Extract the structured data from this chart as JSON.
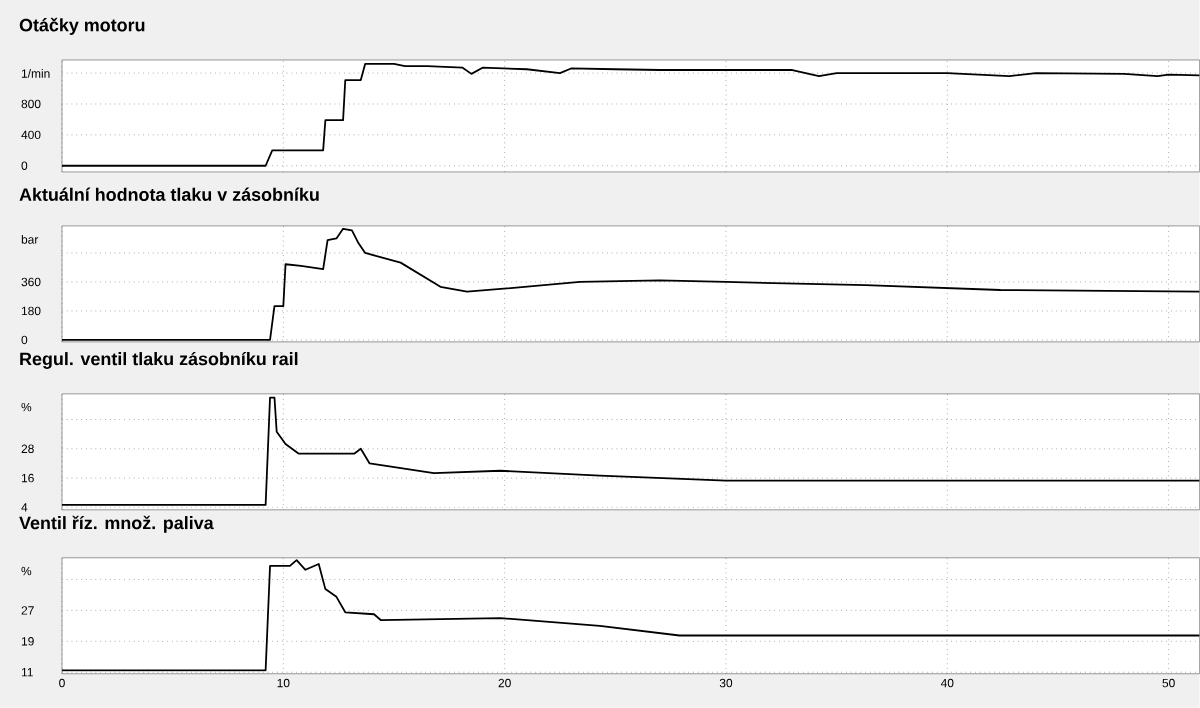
{
  "chart_data": [
    {
      "type": "line",
      "title": "Otáčky motoru",
      "ylabel": "1/min",
      "color": "#000000",
      "grid": true,
      "tick_labels": "y",
      "xlim": [
        0,
        51.4
      ],
      "ylim": [
        -80,
        1370
      ],
      "xticks": [
        0,
        10,
        20,
        30,
        40,
        50
      ],
      "yticks": [
        0,
        400,
        800,
        {
          "value": 1200,
          "label": null
        }
      ],
      "x": [
        0,
        9.2,
        9.5,
        11.8,
        11.9,
        12.7,
        12.8,
        13.5,
        13.7,
        15,
        15.5,
        16.5,
        18.1,
        18.5,
        19,
        21,
        22.5,
        23,
        25,
        27,
        30,
        33,
        34.2,
        35,
        40,
        42.8,
        44,
        48,
        49.5,
        50,
        51.4
      ],
      "values": [
        0,
        0,
        200,
        200,
        590,
        590,
        1110,
        1110,
        1320,
        1320,
        1290,
        1290,
        1270,
        1190,
        1270,
        1250,
        1200,
        1260,
        1250,
        1240,
        1240,
        1240,
        1160,
        1200,
        1200,
        1160,
        1200,
        1190,
        1160,
        1180,
        1170
      ]
    },
    {
      "type": "line",
      "title": "Aktuální hodnota tlaku v zásobníku",
      "ylabel": "bar",
      "color": "#000000",
      "grid": true,
      "tick_labels": "y",
      "xlim": [
        0,
        51.4
      ],
      "ylim": [
        -12,
        708
      ],
      "xticks": [
        0,
        10,
        20,
        30,
        40,
        50
      ],
      "yticks": [
        0,
        180,
        360,
        {
          "value": 540,
          "label": null
        }
      ],
      "x": [
        0,
        9.4,
        9.6,
        10,
        10.1,
        10.8,
        11.8,
        12.0,
        12.4,
        12.7,
        13.1,
        13.4,
        13.7,
        15.3,
        17.1,
        18.3,
        20.1,
        23.4,
        27,
        30,
        36.3,
        42.4,
        51.4
      ],
      "values": [
        0,
        0,
        210,
        210,
        470,
        460,
        440,
        620,
        630,
        690,
        680,
        600,
        540,
        480,
        330,
        300,
        320,
        360,
        370,
        360,
        340,
        310,
        300
      ]
    },
    {
      "type": "line",
      "title": "Regul. ventil tlaku zásobníku rail",
      "ylabel": "%",
      "color": "#000000",
      "grid": true,
      "tick_labels": "y",
      "xlim": [
        0,
        51.4
      ],
      "ylim": [
        3,
        50.5
      ],
      "xticks": [
        0,
        10,
        20,
        30,
        40,
        50
      ],
      "yticks": [
        4,
        16,
        28,
        {
          "value": 40,
          "label": null
        }
      ],
      "x": [
        0,
        9.2,
        9.4,
        9.6,
        9.7,
        10.1,
        10.7,
        13.2,
        13.5,
        13.9,
        16.8,
        19.8,
        24.3,
        30,
        51.4
      ],
      "values": [
        5,
        5,
        49,
        49,
        35,
        30,
        26,
        26,
        28,
        22,
        18,
        19,
        17,
        15,
        15
      ]
    },
    {
      "type": "line",
      "title": "Ventil říz. množ. paliva",
      "ylabel": "%",
      "color": "#000000",
      "grid": true,
      "xlim": [
        0,
        51.4
      ],
      "ylim": [
        10.6,
        40.6
      ],
      "xticks": [
        0,
        10,
        20,
        30,
        40,
        50
      ],
      "yticks": [
        11,
        19,
        27,
        {
          "value": 35,
          "label": null
        }
      ],
      "x": [
        0,
        9.2,
        9.4,
        10.3,
        10.6,
        11,
        11.6,
        11.9,
        12.4,
        12.8,
        14.1,
        14.4,
        19.8,
        24.3,
        27.9,
        51.4
      ],
      "values": [
        11.5,
        11.5,
        38.5,
        38.5,
        40,
        37.5,
        39,
        32.5,
        30.5,
        26.5,
        26,
        24.5,
        25,
        23,
        20.5,
        20.5
      ]
    }
  ]
}
